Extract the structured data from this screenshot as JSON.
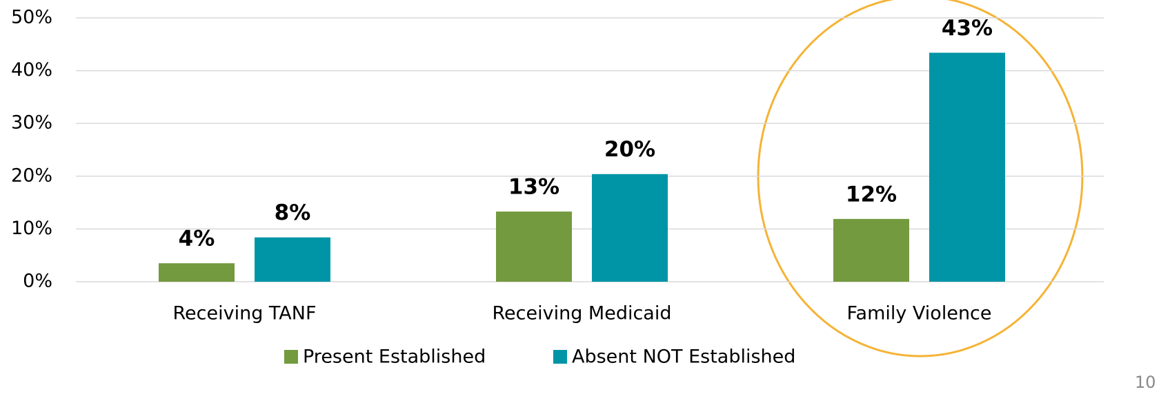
{
  "chart_data": {
    "type": "bar",
    "categories": [
      "Receiving TANF",
      "Receiving Medicaid",
      "Family Violence"
    ],
    "series": [
      {
        "name": "Present Established",
        "color": "#739a3f",
        "values": [
          3.5,
          13.3,
          11.9
        ],
        "value_labels": [
          "4%",
          "13%",
          "12%"
        ]
      },
      {
        "name": "Absent NOT Established",
        "color": "#0095a6",
        "values": [
          8.4,
          20.4,
          43.4
        ],
        "value_labels": [
          "8%",
          "20%",
          "43%"
        ]
      }
    ],
    "ylim": [
      0,
      50
    ],
    "yticks": [
      {
        "value": 0,
        "label": "0%"
      },
      {
        "value": 10,
        "label": "10%"
      },
      {
        "value": 20,
        "label": "20%"
      },
      {
        "value": 30,
        "label": "30%"
      },
      {
        "value": 40,
        "label": "40%"
      },
      {
        "value": 50,
        "label": "50%"
      }
    ],
    "grid": true,
    "legend": "bottom",
    "page_number": "10"
  }
}
